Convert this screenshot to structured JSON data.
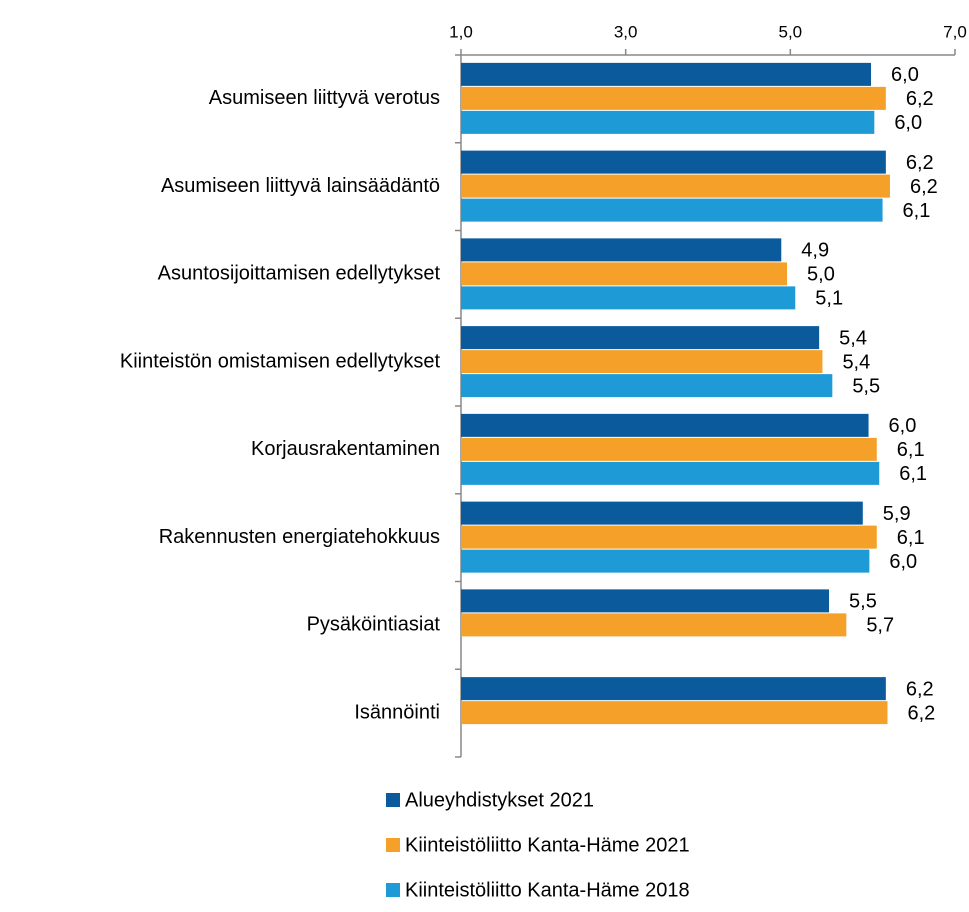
{
  "chart_data": {
    "type": "hbar",
    "categories": [
      "Asumiseen liittyvä verotus",
      "Asumiseen liittyvä lainsäädäntö",
      "Asuntosijoittamisen edellytykset",
      "Kiinteistön omistamisen edellytykset",
      "Korjausrakentaminen",
      "Rakennusten energiatehokkuus",
      "Pysäköintiasiat",
      "Isännöinti"
    ],
    "series": [
      {
        "name": "Alueyhdistykset 2021",
        "color": "#0a5a9c",
        "values": [
          5.98,
          6.16,
          4.89,
          5.35,
          5.95,
          5.88,
          5.47,
          6.16
        ],
        "value_labels": [
          "6,0",
          "6,2",
          "4,9",
          "5,4",
          "6,0",
          "5,9",
          "5,5",
          "6,2"
        ]
      },
      {
        "name": "Kiinteistöliitto Kanta-Häme 2021",
        "color": "#f5a028",
        "values": [
          6.16,
          6.21,
          4.96,
          5.39,
          6.05,
          6.05,
          5.68,
          6.18
        ],
        "value_labels": [
          "6,2",
          "6,2",
          "5,0",
          "5,4",
          "6,1",
          "6,1",
          "5,7",
          "6,2"
        ]
      },
      {
        "name": "Kiinteistöliitto Kanta-Häme 2018",
        "color": "#1e9ad6",
        "values": [
          6.02,
          6.12,
          5.06,
          5.51,
          6.08,
          5.96,
          null,
          null
        ],
        "value_labels": [
          "6,0",
          "6,1",
          "5,1",
          "5,5",
          "6,1",
          "6,0",
          null,
          null
        ]
      }
    ],
    "xlim": [
      1,
      7
    ],
    "xticks": [
      {
        "value": 1,
        "label": "1,0"
      },
      {
        "value": 3,
        "label": "3,0"
      },
      {
        "value": 5,
        "label": "5,0"
      },
      {
        "value": 7,
        "label": "7,0"
      }
    ]
  }
}
